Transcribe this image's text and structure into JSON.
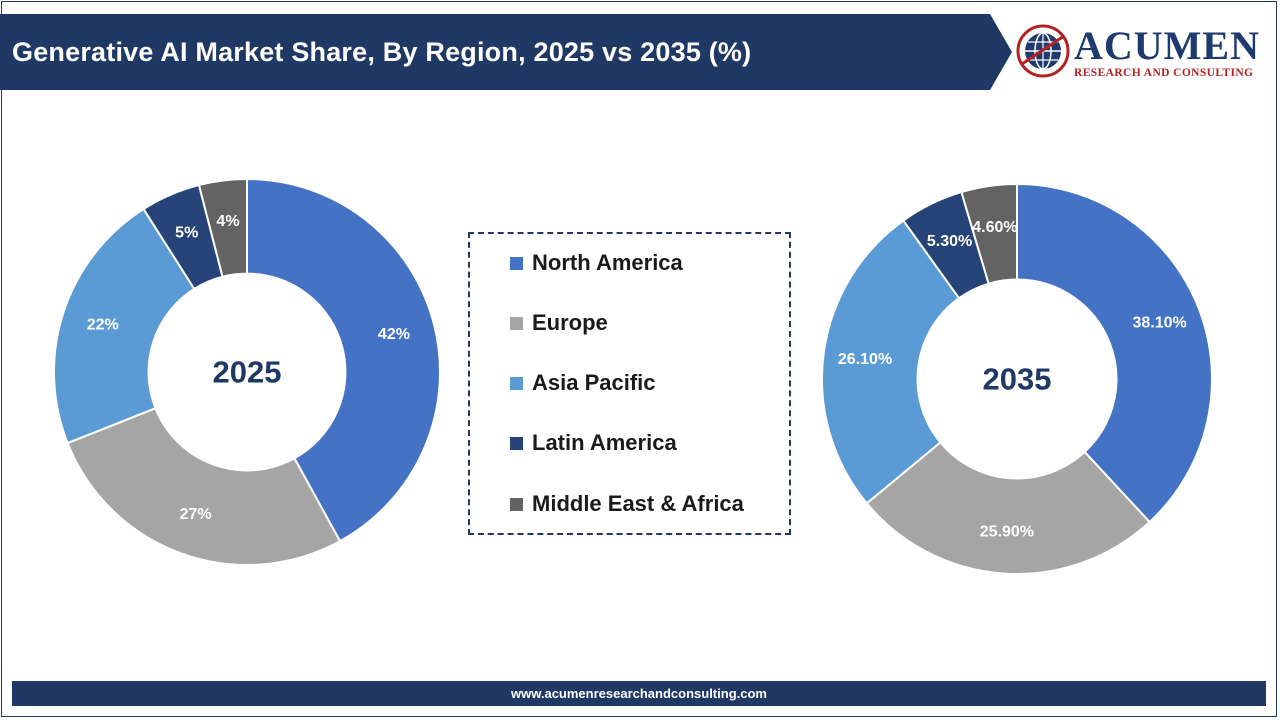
{
  "header": {
    "title": "Generative AI Market Share, By Region, 2025 vs 2035 (%)",
    "banner_color": "#1f3864"
  },
  "logo": {
    "name": "ACUMEN",
    "tagline": "RESEARCH AND CONSULTING",
    "name_color": "#1f3a6e",
    "accent_color": "#b22222"
  },
  "footer": {
    "url": "www.acumenresearchandconsulting.com"
  },
  "legend": {
    "items": [
      {
        "label": "North America",
        "color": "#4472c4"
      },
      {
        "label": "Europe",
        "color": "#a5a5a5"
      },
      {
        "label": "Asia Pacific",
        "color": "#5b9bd5"
      },
      {
        "label": "Latin America",
        "color": "#264478"
      },
      {
        "label": "Middle East & Africa",
        "color": "#636363"
      }
    ]
  },
  "chart_data": [
    {
      "type": "pie",
      "variant": "donut",
      "center_label": "2025",
      "categories": [
        "North America",
        "Europe",
        "Asia Pacific",
        "Latin America",
        "Middle East & Africa"
      ],
      "values": [
        42,
        27,
        22,
        5,
        4
      ],
      "data_labels": [
        "42%",
        "27%",
        "22%",
        "5%",
        "4%"
      ],
      "colors": [
        "#4472c4",
        "#a5a5a5",
        "#5b9bd5",
        "#264478",
        "#636363"
      ]
    },
    {
      "type": "pie",
      "variant": "donut",
      "center_label": "2035",
      "categories": [
        "North America",
        "Europe",
        "Asia Pacific",
        "Latin America",
        "Middle East & Africa"
      ],
      "values": [
        38.1,
        25.9,
        26.1,
        5.3,
        4.6
      ],
      "data_labels": [
        "38.10%",
        "25.90%",
        "26.10%",
        "5.30%",
        "4.60%"
      ],
      "colors": [
        "#4472c4",
        "#a5a5a5",
        "#5b9bd5",
        "#264478",
        "#636363"
      ]
    }
  ]
}
